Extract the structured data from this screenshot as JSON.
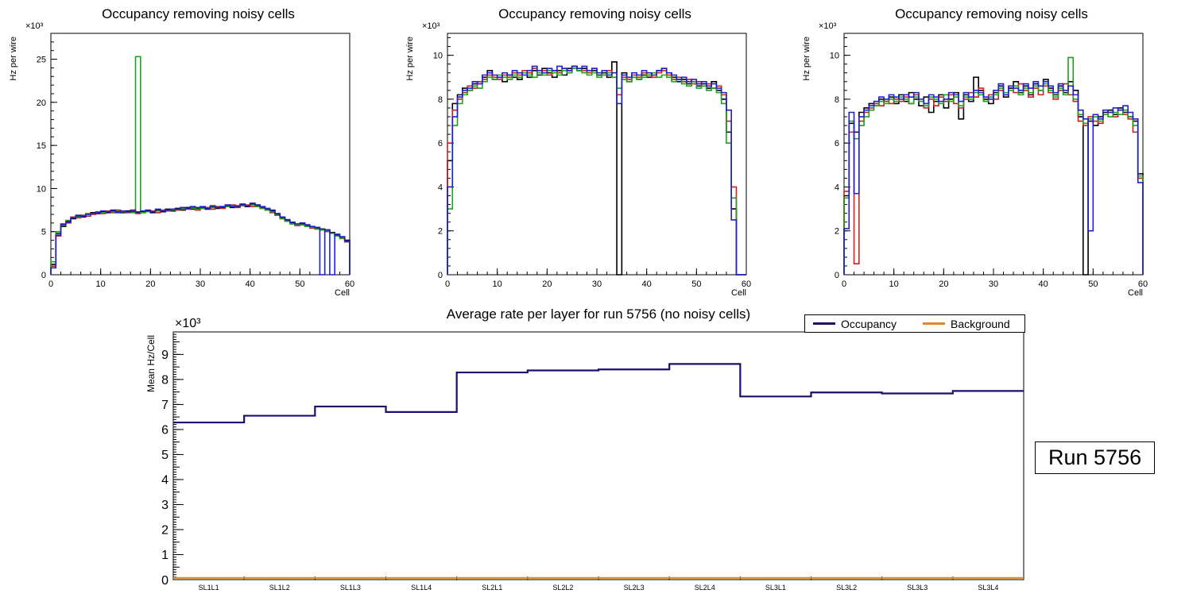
{
  "chart_data": [
    {
      "type": "histogram-step",
      "title": "Occupancy removing noisy cells",
      "xlabel": "Cell",
      "ylabel": "Hz per wire",
      "y_exponent": "×10³",
      "xlim": [
        0,
        60
      ],
      "ylim": [
        0,
        28
      ],
      "xticks": [
        0,
        10,
        20,
        30,
        40,
        50,
        60
      ],
      "yticks": [
        0,
        5,
        10,
        15,
        20,
        25
      ],
      "xminor": 2,
      "yminor": 1,
      "bins": 60,
      "legend_position": "none",
      "grid": false,
      "series": [
        {
          "name": "black",
          "color": "#000000",
          "values": [
            1.2,
            4.8,
            5.6,
            6.2,
            6.5,
            6.8,
            6.7,
            7.0,
            7.2,
            7.1,
            7.3,
            7.2,
            7.4,
            7.3,
            7.2,
            7.4,
            7.3,
            7.2,
            7.3,
            7.4,
            7.2,
            7.5,
            7.3,
            7.6,
            7.4,
            7.7,
            7.5,
            7.8,
            7.6,
            7.7,
            7.8,
            7.6,
            7.9,
            7.7,
            7.8,
            8.0,
            7.8,
            7.9,
            8.1,
            7.9,
            8.2,
            8.0,
            7.8,
            7.6,
            7.4,
            7.0,
            6.6,
            6.3,
            6.0,
            5.8,
            5.9,
            5.7,
            5.5,
            5.4,
            5.3,
            5.2,
            4.9,
            4.6,
            4.4,
            4.0
          ]
        },
        {
          "name": "red",
          "color": "#cc2020",
          "values": [
            1.0,
            4.5,
            5.9,
            6.0,
            6.7,
            6.6,
            6.9,
            6.8,
            7.0,
            7.3,
            7.1,
            7.4,
            7.2,
            7.5,
            7.3,
            7.2,
            7.4,
            7.1,
            7.2,
            7.3,
            7.4,
            7.2,
            7.5,
            7.4,
            7.6,
            7.5,
            7.7,
            7.6,
            7.8,
            7.5,
            7.7,
            7.8,
            7.6,
            7.9,
            7.7,
            7.9,
            8.1,
            7.8,
            8.0,
            8.1,
            7.9,
            8.1,
            7.7,
            7.5,
            7.2,
            6.9,
            6.5,
            6.2,
            5.9,
            5.7,
            5.8,
            5.6,
            5.4,
            5.3,
            5.2,
            5.0,
            4.8,
            4.5,
            4.3,
            3.8
          ]
        },
        {
          "name": "green",
          "color": "#1fa01f",
          "values": [
            1.5,
            5.0,
            5.7,
            6.3,
            6.6,
            6.7,
            6.8,
            7.1,
            7.1,
            7.2,
            7.2,
            7.3,
            7.3,
            7.4,
            7.3,
            7.3,
            7.2,
            25.3,
            7.2,
            7.3,
            7.3,
            7.4,
            7.4,
            7.5,
            7.5,
            7.6,
            7.6,
            7.7,
            7.7,
            7.6,
            7.7,
            7.7,
            7.8,
            7.8,
            7.9,
            7.9,
            8.0,
            8.0,
            8.0,
            8.0,
            8.1,
            7.9,
            7.7,
            7.5,
            7.3,
            6.9,
            6.5,
            6.2,
            5.9,
            5.8,
            5.8,
            5.6,
            5.5,
            5.3,
            5.2,
            5.1,
            4.8,
            4.5,
            4.2,
            3.9
          ]
        },
        {
          "name": "blue",
          "color": "#2020cc",
          "values": [
            0.8,
            4.6,
            5.8,
            6.1,
            6.6,
            6.9,
            6.8,
            7.0,
            7.1,
            7.2,
            7.4,
            7.3,
            7.5,
            7.2,
            7.4,
            7.3,
            7.5,
            7.3,
            7.4,
            7.5,
            7.3,
            7.6,
            7.4,
            7.5,
            7.6,
            7.6,
            7.8,
            7.7,
            7.9,
            7.8,
            7.9,
            7.7,
            8.0,
            7.8,
            7.9,
            8.1,
            7.9,
            8.0,
            8.2,
            8.0,
            8.3,
            8.1,
            7.9,
            7.7,
            7.5,
            7.1,
            6.7,
            6.4,
            6.1,
            5.9,
            6.0,
            5.8,
            5.6,
            5.5,
            0.0,
            5.2,
            0.0,
            4.7,
            4.4,
            3.9
          ]
        }
      ]
    },
    {
      "type": "histogram-step",
      "title": "Occupancy removing noisy cells",
      "xlabel": "Cell",
      "ylabel": "Hz per wire",
      "y_exponent": "×10³",
      "xlim": [
        0,
        60
      ],
      "ylim": [
        0,
        11
      ],
      "xticks": [
        0,
        10,
        20,
        30,
        40,
        50,
        60
      ],
      "yticks": [
        0,
        2,
        4,
        6,
        8,
        10
      ],
      "xminor": 2,
      "yminor": 0.4,
      "bins": 60,
      "legend_position": "none",
      "grid": false,
      "series": [
        {
          "name": "black",
          "color": "#000000",
          "values": [
            5.2,
            7.8,
            8.2,
            8.5,
            8.4,
            8.7,
            8.8,
            9.0,
            9.3,
            8.9,
            9.0,
            8.8,
            9.1,
            9.0,
            8.9,
            9.2,
            9.0,
            9.3,
            9.1,
            9.4,
            9.2,
            9.0,
            9.3,
            9.1,
            9.4,
            9.5,
            9.3,
            9.4,
            9.2,
            9.3,
            9.1,
            9.2,
            9.0,
            9.7,
            0.0,
            9.2,
            8.8,
            9.0,
            8.9,
            9.1,
            9.0,
            9.2,
            9.3,
            9.4,
            9.2,
            9.0,
            8.8,
            8.9,
            8.7,
            8.8,
            8.6,
            8.7,
            8.5,
            8.8,
            8.4,
            8.0,
            6.5,
            3.0,
            0.0,
            0.0
          ]
        },
        {
          "name": "red",
          "color": "#cc2020",
          "values": [
            6.0,
            7.5,
            8.0,
            8.3,
            8.6,
            8.5,
            8.8,
            8.9,
            9.1,
            9.0,
            8.9,
            9.1,
            9.0,
            9.2,
            9.1,
            9.3,
            9.2,
            9.4,
            9.2,
            9.3,
            9.1,
            9.3,
            9.2,
            9.4,
            9.3,
            9.5,
            9.4,
            9.3,
            9.2,
            9.4,
            9.2,
            9.1,
            9.3,
            9.0,
            8.2,
            9.0,
            8.9,
            9.1,
            9.0,
            9.2,
            9.1,
            9.0,
            9.2,
            9.3,
            9.1,
            8.9,
            9.0,
            8.8,
            8.9,
            8.7,
            8.8,
            8.6,
            8.7,
            8.5,
            8.6,
            8.2,
            7.0,
            4.0,
            0.0,
            0.0
          ]
        },
        {
          "name": "green",
          "color": "#1fa01f",
          "values": [
            3.0,
            6.8,
            7.8,
            8.2,
            8.4,
            8.6,
            8.5,
            8.8,
            9.0,
            8.9,
            9.1,
            9.0,
            8.9,
            9.1,
            9.0,
            9.2,
            9.1,
            9.0,
            9.2,
            9.1,
            9.3,
            9.2,
            9.1,
            9.3,
            9.2,
            9.4,
            9.3,
            9.2,
            9.1,
            9.2,
            9.0,
            9.1,
            9.2,
            9.0,
            8.5,
            8.9,
            8.8,
            9.0,
            8.9,
            9.0,
            9.1,
            9.2,
            9.0,
            9.1,
            9.0,
            8.8,
            8.9,
            8.7,
            8.6,
            8.8,
            8.5,
            8.6,
            8.4,
            8.5,
            8.3,
            7.8,
            6.0,
            3.5,
            0.0,
            0.0
          ]
        },
        {
          "name": "blue",
          "color": "#2020cc",
          "values": [
            4.0,
            7.2,
            8.1,
            8.4,
            8.5,
            8.8,
            8.7,
            9.1,
            9.2,
            9.1,
            9.0,
            9.2,
            9.1,
            9.3,
            9.2,
            9.1,
            9.3,
            9.5,
            9.3,
            9.2,
            9.4,
            9.3,
            9.5,
            9.4,
            9.3,
            9.5,
            9.4,
            9.5,
            9.3,
            9.4,
            9.2,
            9.3,
            9.1,
            9.2,
            7.8,
            9.1,
            9.0,
            9.2,
            9.1,
            9.3,
            9.2,
            9.1,
            9.3,
            9.4,
            9.2,
            9.1,
            8.9,
            9.0,
            8.8,
            8.9,
            8.7,
            8.8,
            8.6,
            8.7,
            8.5,
            8.3,
            7.5,
            2.5,
            0.0,
            0.0
          ]
        }
      ]
    },
    {
      "type": "histogram-step",
      "title": "Occupancy removing noisy cells",
      "xlabel": "Cell",
      "ylabel": "Hz per wire",
      "y_exponent": "×10³",
      "xlim": [
        0,
        60
      ],
      "ylim": [
        0,
        11
      ],
      "xticks": [
        0,
        10,
        20,
        30,
        40,
        50,
        60
      ],
      "yticks": [
        0,
        2,
        4,
        6,
        8,
        10
      ],
      "xminor": 2,
      "yminor": 0.4,
      "bins": 60,
      "legend_position": "none",
      "grid": false,
      "series": [
        {
          "name": "black",
          "color": "#000000",
          "values": [
            3.6,
            6.9,
            6.5,
            7.4,
            7.6,
            7.8,
            7.7,
            8.0,
            7.9,
            8.1,
            7.8,
            8.2,
            7.9,
            8.3,
            8.0,
            7.7,
            8.1,
            7.4,
            7.9,
            8.2,
            7.6,
            8.0,
            8.3,
            7.1,
            8.2,
            7.9,
            9.0,
            8.4,
            8.0,
            7.8,
            8.3,
            8.6,
            8.1,
            8.5,
            8.8,
            8.3,
            8.6,
            8.2,
            8.7,
            8.4,
            8.9,
            8.5,
            8.2,
            8.6,
            8.3,
            8.8,
            8.4,
            7.2,
            0.0,
            7.0,
            6.8,
            7.2,
            7.4,
            7.5,
            7.3,
            7.6,
            7.4,
            7.2,
            7.0,
            4.6
          ]
        },
        {
          "name": "red",
          "color": "#cc2020",
          "values": [
            3.8,
            6.5,
            0.5,
            7.0,
            7.4,
            7.6,
            7.8,
            7.7,
            7.9,
            7.8,
            8.0,
            7.9,
            8.1,
            7.8,
            8.2,
            7.9,
            7.6,
            8.0,
            7.7,
            8.1,
            7.9,
            8.2,
            7.8,
            7.6,
            8.0,
            8.3,
            8.1,
            8.5,
            7.9,
            8.2,
            8.0,
            8.4,
            8.2,
            8.6,
            8.3,
            8.7,
            8.4,
            8.1,
            8.5,
            8.2,
            8.6,
            8.3,
            8.0,
            8.4,
            8.7,
            8.2,
            7.9,
            7.0,
            6.8,
            7.2,
            7.0,
            6.9,
            7.3,
            7.4,
            7.2,
            7.5,
            7.3,
            7.1,
            6.5,
            4.4
          ]
        },
        {
          "name": "green",
          "color": "#1fa01f",
          "values": [
            3.5,
            7.0,
            6.2,
            6.8,
            7.2,
            7.5,
            7.7,
            7.9,
            7.8,
            8.0,
            7.9,
            8.1,
            8.0,
            7.8,
            8.1,
            7.9,
            7.7,
            8.1,
            8.0,
            7.8,
            8.2,
            7.9,
            8.1,
            7.7,
            8.1,
            8.0,
            8.3,
            8.2,
            7.9,
            8.1,
            8.2,
            8.5,
            8.3,
            8.4,
            8.6,
            8.2,
            8.5,
            8.3,
            8.6,
            8.4,
            8.7,
            8.4,
            8.1,
            8.5,
            8.2,
            9.9,
            8.0,
            7.3,
            6.9,
            7.1,
            7.2,
            7.0,
            7.3,
            7.2,
            7.4,
            7.3,
            7.5,
            7.2,
            6.8,
            4.5
          ]
        },
        {
          "name": "blue",
          "color": "#2020cc",
          "values": [
            2.1,
            7.4,
            3.7,
            7.2,
            7.5,
            7.7,
            7.9,
            8.1,
            8.0,
            8.2,
            8.1,
            8.0,
            8.2,
            8.1,
            8.3,
            8.0,
            7.8,
            8.2,
            8.1,
            7.9,
            8.0,
            8.3,
            8.2,
            7.9,
            8.3,
            8.1,
            8.4,
            8.3,
            8.1,
            8.0,
            8.4,
            8.7,
            8.2,
            8.6,
            8.5,
            8.4,
            8.7,
            8.5,
            8.8,
            8.6,
            8.8,
            8.6,
            8.3,
            8.7,
            8.4,
            8.6,
            8.2,
            7.5,
            7.1,
            2.0,
            7.3,
            7.1,
            7.5,
            7.4,
            7.6,
            7.5,
            7.7,
            7.4,
            7.1,
            4.2
          ]
        }
      ]
    },
    {
      "type": "step",
      "title": "Average rate per layer for run 5756 (no noisy cells)",
      "xlabel": "",
      "ylabel": "Mean Hz/Cell",
      "y_exponent": "×10³",
      "ylim": [
        0,
        9.9
      ],
      "yticks": [
        0,
        1,
        2,
        3,
        4,
        5,
        6,
        7,
        8,
        9
      ],
      "yminor": 0.1,
      "ymid": 0.5,
      "categories": [
        "SL1L1",
        "SL1L2",
        "SL1L3",
        "SL1L4",
        "SL2L1",
        "SL2L2",
        "SL2L3",
        "SL2L4",
        "SL3L1",
        "SL3L2",
        "SL3L3",
        "SL3L4"
      ],
      "legend_position": "top-right",
      "grid": false,
      "annotation": "Run 5756",
      "series": [
        {
          "name": "Occupancy",
          "color": "#1a0f6b",
          "values": [
            6.28,
            6.55,
            6.92,
            6.7,
            8.28,
            8.36,
            8.4,
            8.62,
            7.32,
            7.48,
            7.44,
            7.54
          ]
        },
        {
          "name": "Background",
          "color": "#e2862a",
          "values": [
            0.07,
            0.07,
            0.07,
            0.07,
            0.07,
            0.07,
            0.07,
            0.07,
            0.07,
            0.07,
            0.07,
            0.07
          ]
        }
      ]
    }
  ]
}
